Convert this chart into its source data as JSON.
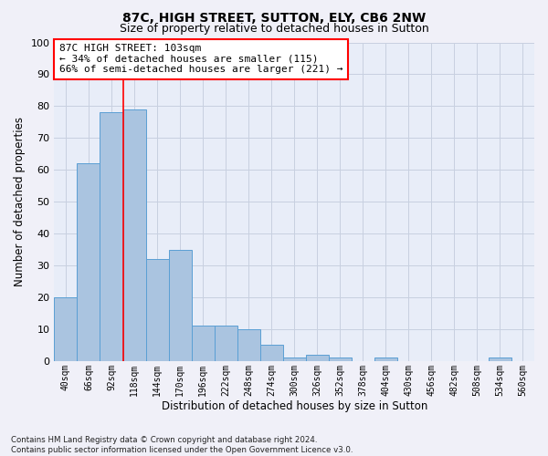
{
  "title1": "87C, HIGH STREET, SUTTON, ELY, CB6 2NW",
  "title2": "Size of property relative to detached houses in Sutton",
  "xlabel": "Distribution of detached houses by size in Sutton",
  "ylabel": "Number of detached properties",
  "categories": [
    "40sqm",
    "66sqm",
    "92sqm",
    "118sqm",
    "144sqm",
    "170sqm",
    "196sqm",
    "222sqm",
    "248sqm",
    "274sqm",
    "300sqm",
    "326sqm",
    "352sqm",
    "378sqm",
    "404sqm",
    "430sqm",
    "456sqm",
    "482sqm",
    "508sqm",
    "534sqm",
    "560sqm"
  ],
  "values": [
    20,
    62,
    78,
    79,
    32,
    35,
    11,
    11,
    10,
    5,
    1,
    2,
    1,
    0,
    1,
    0,
    0,
    0,
    0,
    1,
    0
  ],
  "bar_color": "#aac4e0",
  "bar_edge_color": "#5a9fd4",
  "grid_color": "#c8d0e0",
  "bg_color": "#e8edf8",
  "fig_color": "#f0f0f8",
  "annotation_line1": "87C HIGH STREET: 103sqm",
  "annotation_line2": "← 34% of detached houses are smaller (115)",
  "annotation_line3": "66% of semi-detached houses are larger (221) →",
  "vline_x": 2.5,
  "ylim": [
    0,
    100
  ],
  "yticks": [
    0,
    10,
    20,
    30,
    40,
    50,
    60,
    70,
    80,
    90,
    100
  ],
  "footnote1": "Contains HM Land Registry data © Crown copyright and database right 2024.",
  "footnote2": "Contains public sector information licensed under the Open Government Licence v3.0."
}
